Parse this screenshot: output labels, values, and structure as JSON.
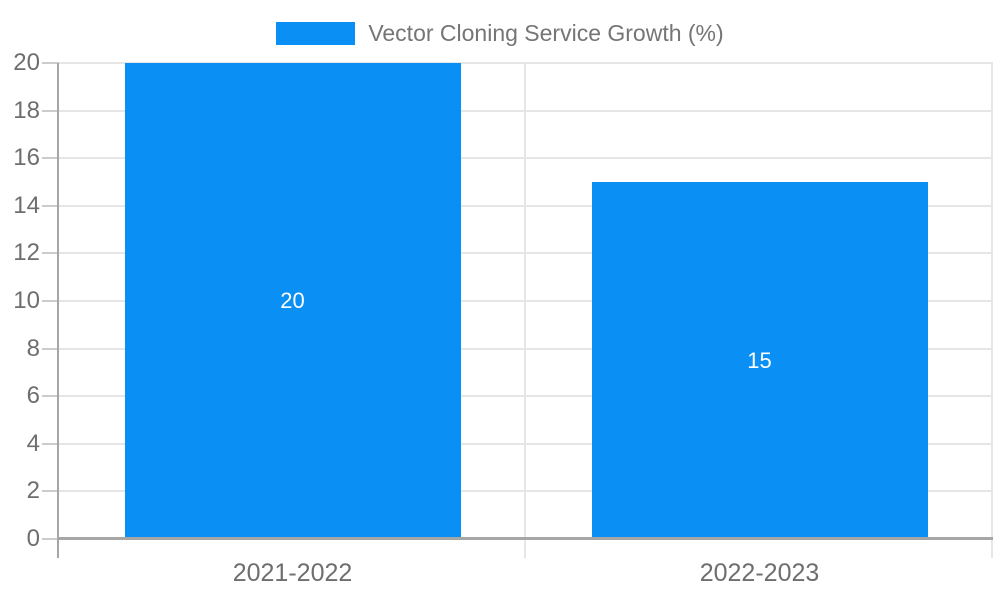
{
  "chart_data": {
    "type": "bar",
    "title": "Vector Cloning Service Growth (%)",
    "categories": [
      "2021-2022",
      "2022-2023"
    ],
    "values": [
      20,
      15
    ],
    "bar_labels": [
      "20",
      "15"
    ],
    "xlabel": "",
    "ylabel": "",
    "ylim": [
      0,
      20
    ],
    "yticks": [
      0,
      2,
      4,
      6,
      8,
      10,
      12,
      14,
      16,
      18,
      20
    ],
    "grid": true,
    "legend_position": "top-center",
    "colors": {
      "bar": "#0a8ff5",
      "title_text": "#757575",
      "axis_text": "#6e6e6e",
      "gridline": "#e6e6e6",
      "tick": "#cccccc",
      "axis_line": "#a6a6a6",
      "bar_label_text": "#ffffff",
      "background": "#ffffff"
    }
  }
}
